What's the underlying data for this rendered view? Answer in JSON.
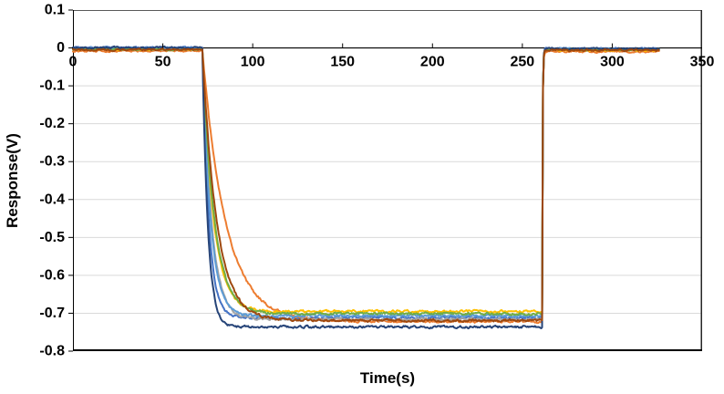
{
  "page": {
    "background": "#ffffff"
  },
  "chart_data": {
    "type": "line",
    "title": "",
    "xlabel": "Time(s)",
    "ylabel": "Response(V)",
    "xlim": [
      0,
      350
    ],
    "ylim": [
      -0.8,
      0.1
    ],
    "x_ticks": [
      0,
      50,
      100,
      150,
      200,
      250,
      300,
      350
    ],
    "x_tick_labels": [
      "0",
      "50",
      "100",
      "150",
      "200",
      "250",
      "300",
      "350"
    ],
    "y_ticks": [
      0.1,
      0,
      -0.1,
      -0.2,
      -0.3,
      -0.4,
      -0.5,
      -0.6,
      -0.7,
      -0.8
    ],
    "y_tick_labels": [
      "0.1",
      "0",
      "-0.1",
      "-0.2",
      "-0.3",
      "-0.4",
      "-0.5",
      "-0.6",
      "-0.7",
      "-0.8"
    ],
    "grid": "horizontal-only",
    "gridline_color": "#D9D9D9",
    "axis_color": "#000000",
    "frame_color": "#595959",
    "legend": "none",
    "step_response": {
      "on_time_s": 72,
      "off_time_s": 261,
      "trace_end_s": 326,
      "baseline_level_v": 0,
      "recovery_level_v": 0,
      "noise_amp_v": 0.005
    },
    "series": [
      {
        "name": "trace-blue",
        "color": "#4472C4",
        "baseline_v": 0.001,
        "plateau_v": -0.712,
        "decay_tau_s": 3.5,
        "after_v": -0.002
      },
      {
        "name": "trace-orange",
        "color": "#ED7D31",
        "baseline_v": -0.008,
        "plateau_v": -0.722,
        "decay_tau_s": 13.0,
        "after_v": -0.01
      },
      {
        "name": "trace-gray",
        "color": "#A5A5A5",
        "baseline_v": -0.003,
        "plateau_v": -0.716,
        "decay_tau_s": 5.0,
        "after_v": -0.005
      },
      {
        "name": "trace-gold",
        "color": "#FFC000",
        "baseline_v": -0.004,
        "plateau_v": -0.695,
        "decay_tau_s": 6.0,
        "after_v": -0.006
      },
      {
        "name": "trace-light-blue",
        "color": "#5B9BD5",
        "baseline_v": 0.0,
        "plateau_v": -0.707,
        "decay_tau_s": 4.5,
        "after_v": -0.003
      },
      {
        "name": "trace-green",
        "color": "#70AD47",
        "baseline_v": -0.004,
        "plateau_v": -0.701,
        "decay_tau_s": 6.5,
        "after_v": -0.005
      },
      {
        "name": "trace-navy",
        "color": "#264478",
        "baseline_v": 0.001,
        "plateau_v": -0.736,
        "decay_tau_s": 3.0,
        "after_v": -0.002
      },
      {
        "name": "trace-brown",
        "color": "#9E480E",
        "baseline_v": -0.005,
        "plateau_v": -0.719,
        "decay_tau_s": 8.0,
        "after_v": -0.006
      }
    ]
  }
}
